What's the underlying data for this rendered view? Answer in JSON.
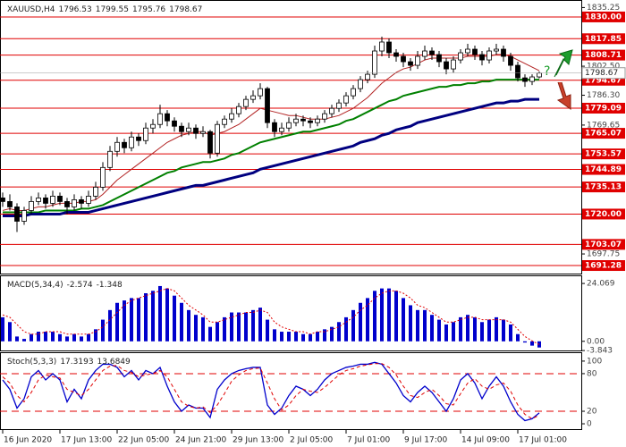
{
  "chart_data": [
    {
      "type": "candlestick",
      "title": "XAUUSD,H4",
      "annotation": "?",
      "categories": [
        "16 Jun 2020",
        null,
        null,
        null,
        null,
        null,
        null,
        null,
        "17 Jun 13:00",
        null,
        null,
        null,
        null,
        null,
        null,
        null,
        "22 Jun 05:00",
        null,
        null,
        null,
        null,
        null,
        null,
        null,
        "24 Jun 21:00",
        null,
        null,
        null,
        null,
        null,
        null,
        null,
        "29 Jun 13:00",
        null,
        null,
        null,
        null,
        null,
        null,
        null,
        "2 Jul 05:00",
        null,
        null,
        null,
        null,
        null,
        null,
        null,
        "7 Jul 01:00",
        null,
        null,
        null,
        null,
        null,
        null,
        null,
        "9 Jul 17:00",
        null,
        null,
        null,
        null,
        null,
        null,
        null,
        "14 Jul 09:00",
        null,
        null,
        null,
        null,
        null,
        null,
        null,
        "17 Jul 01:00",
        null,
        null,
        null
      ],
      "ohlc": [
        [
          1729,
          1732,
          1724,
          1727
        ],
        [
          1727,
          1731,
          1722,
          1724
        ],
        [
          1724,
          1726,
          1710,
          1716
        ],
        [
          1716,
          1724,
          1714,
          1722
        ],
        [
          1722,
          1730,
          1720,
          1727
        ],
        [
          1727,
          1732,
          1725,
          1729
        ],
        [
          1729,
          1731,
          1723,
          1726
        ],
        [
          1726,
          1733,
          1724,
          1730
        ],
        [
          1730,
          1732,
          1725,
          1727
        ],
        [
          1727,
          1729,
          1720,
          1724
        ],
        [
          1724,
          1731,
          1722,
          1728
        ],
        [
          1728,
          1730,
          1723,
          1726
        ],
        [
          1726,
          1733,
          1724,
          1730
        ],
        [
          1730,
          1738,
          1728,
          1735
        ],
        [
          1735,
          1749,
          1733,
          1746
        ],
        [
          1746,
          1758,
          1744,
          1755
        ],
        [
          1755,
          1763,
          1752,
          1760
        ],
        [
          1760,
          1762,
          1754,
          1757
        ],
        [
          1757,
          1766,
          1755,
          1763
        ],
        [
          1763,
          1765,
          1758,
          1761
        ],
        [
          1761,
          1771,
          1759,
          1768
        ],
        [
          1768,
          1773,
          1765,
          1770
        ],
        [
          1770,
          1781,
          1768,
          1776
        ],
        [
          1776,
          1778,
          1769,
          1772
        ],
        [
          1772,
          1774,
          1766,
          1769
        ],
        [
          1769,
          1771,
          1763,
          1766
        ],
        [
          1766,
          1771,
          1764,
          1768
        ],
        [
          1768,
          1770,
          1762,
          1765
        ],
        [
          1765,
          1769,
          1763,
          1766
        ],
        [
          1766,
          1767,
          1751,
          1754
        ],
        [
          1754,
          1772,
          1752,
          1770
        ],
        [
          1770,
          1775,
          1768,
          1773
        ],
        [
          1773,
          1779,
          1771,
          1776
        ],
        [
          1776,
          1782,
          1774,
          1780
        ],
        [
          1780,
          1786,
          1778,
          1784
        ],
        [
          1784,
          1789,
          1782,
          1786
        ],
        [
          1786,
          1793,
          1784,
          1790
        ],
        [
          1790,
          1791,
          1768,
          1771
        ],
        [
          1771,
          1773,
          1763,
          1766
        ],
        [
          1766,
          1771,
          1764,
          1768
        ],
        [
          1768,
          1774,
          1766,
          1771
        ],
        [
          1771,
          1776,
          1769,
          1773
        ],
        [
          1773,
          1775,
          1769,
          1772
        ],
        [
          1772,
          1774,
          1768,
          1771
        ],
        [
          1771,
          1775,
          1769,
          1773
        ],
        [
          1773,
          1778,
          1771,
          1776
        ],
        [
          1776,
          1781,
          1774,
          1779
        ],
        [
          1779,
          1784,
          1777,
          1782
        ],
        [
          1782,
          1788,
          1780,
          1786
        ],
        [
          1786,
          1792,
          1784,
          1790
        ],
        [
          1790,
          1797,
          1788,
          1795
        ],
        [
          1795,
          1800,
          1793,
          1798
        ],
        [
          1798,
          1814,
          1796,
          1811
        ],
        [
          1811,
          1819,
          1808,
          1816
        ],
        [
          1816,
          1818,
          1807,
          1810
        ],
        [
          1810,
          1812,
          1805,
          1808
        ],
        [
          1808,
          1810,
          1802,
          1805
        ],
        [
          1805,
          1807,
          1800,
          1803
        ],
        [
          1803,
          1811,
          1801,
          1808
        ],
        [
          1808,
          1814,
          1806,
          1811
        ],
        [
          1811,
          1813,
          1806,
          1809
        ],
        [
          1809,
          1811,
          1802,
          1805
        ],
        [
          1805,
          1807,
          1798,
          1801
        ],
        [
          1801,
          1808,
          1799,
          1806
        ],
        [
          1806,
          1812,
          1804,
          1810
        ],
        [
          1810,
          1815,
          1808,
          1812
        ],
        [
          1812,
          1814,
          1806,
          1809
        ],
        [
          1809,
          1811,
          1803,
          1806
        ],
        [
          1806,
          1813,
          1804,
          1811
        ],
        [
          1811,
          1815,
          1809,
          1812
        ],
        [
          1812,
          1814,
          1805,
          1808
        ],
        [
          1808,
          1810,
          1800,
          1803
        ],
        [
          1803,
          1805,
          1794,
          1796
        ],
        [
          1796,
          1798,
          1791,
          1794
        ],
        [
          1794,
          1798,
          1792,
          1796.53
        ],
        [
          1796.53,
          1799.55,
          1795.76,
          1798.67
        ]
      ],
      "series": [
        {
          "color": "#b22222",
          "values": [
            1722,
            1723,
            1722,
            1722,
            1723,
            1724,
            1724,
            1725,
            1726,
            1726,
            1726,
            1727,
            1727,
            1728,
            1731,
            1735,
            1739,
            1742,
            1745,
            1748,
            1751,
            1754,
            1757,
            1760,
            1762,
            1764,
            1765,
            1766,
            1766,
            1764,
            1765,
            1766,
            1768,
            1770,
            1773,
            1776,
            1779,
            1778,
            1777,
            1776,
            1775,
            1775,
            1774,
            1773,
            1773,
            1773,
            1774,
            1775,
            1777,
            1779,
            1782,
            1785,
            1789,
            1793,
            1796,
            1799,
            1801,
            1802,
            1804,
            1806,
            1807,
            1807,
            1807,
            1807,
            1807,
            1808,
            1808,
            1808,
            1808,
            1809,
            1809,
            1808,
            1806,
            1804,
            1802,
            1800
          ]
        },
        {
          "color": "#008000",
          "values": [
            1721,
            1721,
            1721,
            1721,
            1721,
            1721,
            1722,
            1722,
            1722,
            1722,
            1722,
            1723,
            1723,
            1724,
            1725,
            1727,
            1729,
            1731,
            1733,
            1735,
            1737,
            1739,
            1741,
            1743,
            1744,
            1746,
            1747,
            1748,
            1749,
            1749,
            1750,
            1751,
            1753,
            1754,
            1756,
            1758,
            1760,
            1761,
            1762,
            1763,
            1764,
            1765,
            1766,
            1766,
            1767,
            1768,
            1769,
            1770,
            1772,
            1773,
            1775,
            1777,
            1779,
            1781,
            1783,
            1784,
            1786,
            1787,
            1788,
            1789,
            1790,
            1791,
            1791,
            1792,
            1792,
            1793,
            1793,
            1794,
            1794,
            1795,
            1795,
            1795,
            1795,
            1795,
            1795,
            1795
          ]
        },
        {
          "color": "#000080",
          "values": [
            1719,
            1719,
            1719,
            1719,
            1720,
            1720,
            1720,
            1720,
            1720,
            1721,
            1721,
            1721,
            1721,
            1722,
            1723,
            1724,
            1725,
            1726,
            1727,
            1728,
            1729,
            1730,
            1731,
            1732,
            1733,
            1734,
            1735,
            1736,
            1736,
            1737,
            1738,
            1739,
            1740,
            1741,
            1742,
            1743,
            1745,
            1746,
            1747,
            1748,
            1749,
            1750,
            1751,
            1752,
            1753,
            1754,
            1755,
            1756,
            1757,
            1758,
            1760,
            1761,
            1762,
            1764,
            1765,
            1767,
            1768,
            1769,
            1771,
            1772,
            1773,
            1774,
            1775,
            1776,
            1777,
            1778,
            1779,
            1780,
            1781,
            1782,
            1782,
            1783,
            1783,
            1784,
            1784,
            1784
          ]
        }
      ],
      "ylim": [
        1686.8,
        1838.45
      ],
      "yticks": [
        1835.25,
        {
          "value": 1802.5,
          "label": "1802.50"
        },
        {
          "value": 1786.3,
          "label": "1786.30"
        },
        1769.65,
        1697.75
      ],
      "levels": [
        {
          "value": 1830,
          "label": "1830.00"
        },
        1817.85,
        1808.71,
        1794.67,
        1779.09,
        1765.07,
        1753.57,
        1744.89,
        1735.13,
        {
          "value": 1720,
          "label": "1720.00"
        },
        1703.07,
        1691.28
      ],
      "level_color": "#e00000"
    },
    {
      "type": "macd",
      "title": "MACD(5,34,4)",
      "series": [
        {
          "color": "#0000cc",
          "values": [
            10,
            8,
            2,
            1,
            3,
            4,
            4,
            4,
            3,
            2,
            3,
            2,
            3,
            5,
            9,
            13,
            16,
            17,
            18,
            18,
            20,
            21,
            23,
            22,
            19,
            16,
            13,
            11,
            10,
            6,
            8,
            10,
            12,
            12,
            12,
            13,
            14,
            9,
            5,
            4,
            4,
            4,
            3,
            3,
            4,
            5,
            6,
            8,
            10,
            13,
            16,
            18,
            21,
            22,
            22,
            21,
            18,
            15,
            13,
            13,
            11,
            9,
            7,
            8,
            10,
            11,
            10,
            8,
            9,
            10,
            9,
            7,
            3,
            -0.5,
            -1.8,
            -2.574
          ]
        },
        {
          "color": "#e00000",
          "values": [
            11,
            10,
            7,
            4,
            3,
            3,
            4,
            4,
            4,
            3,
            3,
            3,
            3,
            4,
            6,
            9,
            12,
            15,
            17,
            18,
            19,
            20,
            21,
            22,
            21,
            18,
            15,
            13,
            11,
            8,
            8,
            9,
            10,
            11,
            12,
            12,
            13,
            12,
            8,
            6,
            5,
            4,
            4,
            3,
            4,
            4,
            5,
            6,
            8,
            10,
            13,
            15,
            18,
            20,
            21,
            21,
            20,
            18,
            15,
            14,
            12,
            10,
            8,
            8,
            9,
            10,
            10,
            9,
            9,
            9,
            9,
            8,
            5,
            2,
            0.2,
            -1.348
          ]
        }
      ],
      "ylim": [
        -3.8,
        26.7
      ],
      "yticks": [
        24.069,
        {
          "value": 0,
          "label": "0.00"
        },
        -3.843
      ]
    },
    {
      "type": "stochastic",
      "title": "Stoch(5,3,3)",
      "series": [
        {
          "color": "#0000cc",
          "values": [
            70,
            55,
            25,
            40,
            75,
            85,
            70,
            80,
            70,
            35,
            55,
            40,
            70,
            85,
            95,
            95,
            90,
            75,
            85,
            70,
            85,
            80,
            90,
            60,
            35,
            20,
            30,
            25,
            25,
            10,
            55,
            70,
            80,
            85,
            88,
            90,
            90,
            30,
            15,
            25,
            45,
            60,
            55,
            45,
            55,
            70,
            80,
            85,
            90,
            92,
            95,
            95,
            98,
            95,
            80,
            65,
            45,
            35,
            50,
            60,
            50,
            35,
            20,
            40,
            70,
            80,
            65,
            40,
            60,
            75,
            60,
            35,
            15,
            5,
            8,
            17.3193
          ]
        },
        {
          "color": "#e00000",
          "values": [
            75,
            65,
            45,
            35,
            50,
            70,
            78,
            75,
            73,
            55,
            50,
            45,
            55,
            70,
            85,
            92,
            93,
            85,
            82,
            75,
            78,
            80,
            85,
            75,
            55,
            35,
            28,
            25,
            27,
            18,
            30,
            48,
            68,
            78,
            85,
            88,
            89,
            65,
            40,
            22,
            30,
            45,
            55,
            52,
            50,
            58,
            68,
            78,
            85,
            88,
            92,
            94,
            96,
            96,
            90,
            78,
            60,
            45,
            42,
            50,
            55,
            45,
            32,
            30,
            48,
            65,
            72,
            60,
            55,
            62,
            65,
            52,
            30,
            15,
            8,
            13.6849
          ]
        }
      ],
      "ylim": [
        -8.5,
        111.3
      ],
      "yticks": [
        100,
        80,
        20,
        0
      ],
      "levels": [
        80,
        20
      ],
      "level_color": "#e00000"
    }
  ]
}
